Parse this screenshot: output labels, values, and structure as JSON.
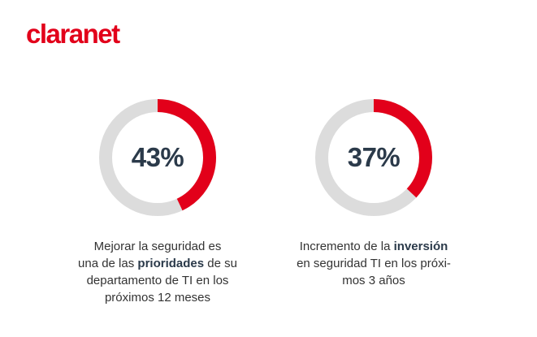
{
  "brand": {
    "logo_text": "claranet",
    "accent": "#e2001a"
  },
  "colors": {
    "track": "#dcdcdc",
    "fill": "#e2001a",
    "number": "#2b3a4a"
  },
  "chart_data": [
    {
      "type": "pie",
      "value_percent": 43,
      "label": "43%",
      "caption": {
        "line1": "Mejorar la seguridad es",
        "line2_pre": "una de las ",
        "line2_bold": "prioridades",
        "line2_post": " de su",
        "line3": "departamento de TI en los",
        "line4": "próximos 12 meses"
      }
    },
    {
      "type": "pie",
      "value_percent": 37,
      "label": "37%",
      "caption": {
        "line1_pre": "Incremento de la ",
        "line1_bold": "inversión",
        "line2": "en seguridad TI en los próxi-",
        "line3": "mos 3 años"
      }
    }
  ]
}
